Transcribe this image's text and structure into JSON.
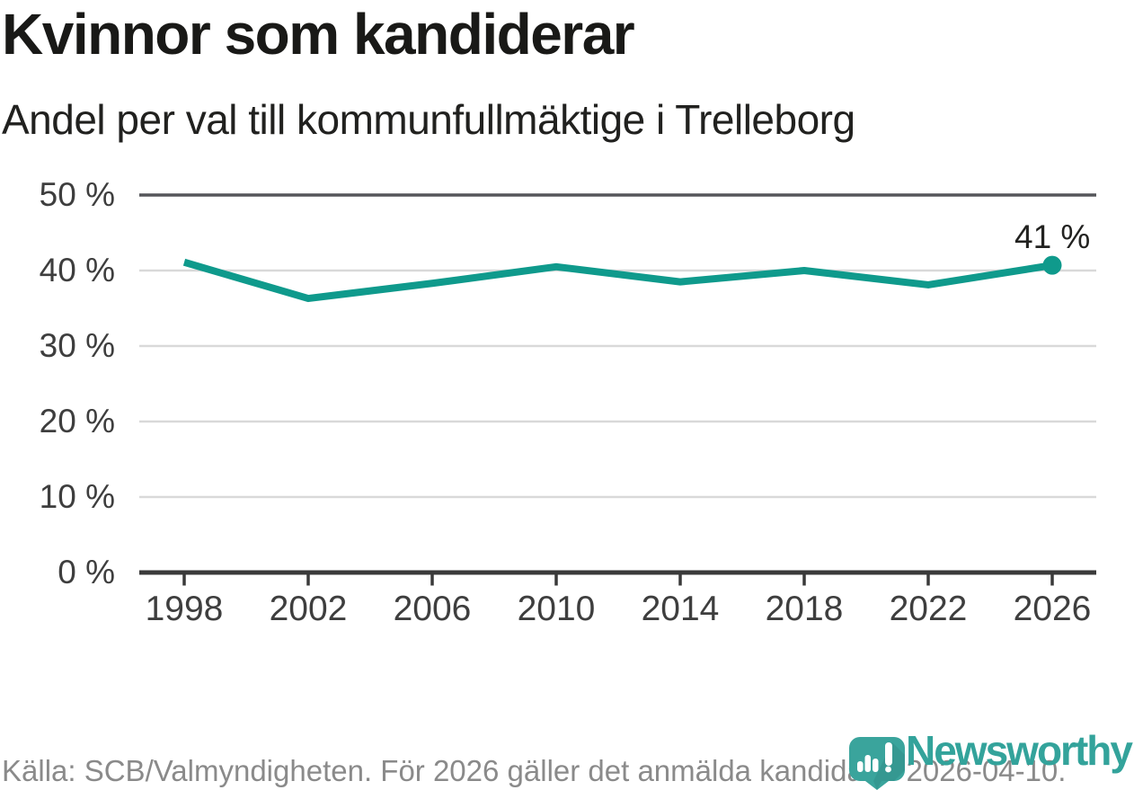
{
  "chart_data": {
    "type": "line",
    "title": "Kvinnor som kandiderar",
    "subtitle": "Andel per val till kommunfullmäktige i Trelleborg",
    "categories": [
      "1998",
      "2002",
      "2006",
      "2010",
      "2014",
      "2018",
      "2022",
      "2026"
    ],
    "series": [
      {
        "name": "Kvinnor som kandiderar",
        "values": [
          41.1,
          36.3,
          38.3,
          40.5,
          38.5,
          40.0,
          38.1,
          40.7
        ]
      }
    ],
    "ylim": [
      0,
      50
    ],
    "yticks": [
      0,
      10,
      20,
      30,
      40,
      50
    ],
    "ytick_labels": [
      "0 %",
      "10 %",
      "20 %",
      "30 %",
      "40 %",
      "50 %"
    ],
    "end_point_label": "41 %",
    "line_color": "#0f9a8c",
    "grid": true,
    "legend": "none",
    "colors": {
      "axis_dark": "#3a3a3a",
      "grid_top": "#55565a",
      "grid_light": "#d9d9d9",
      "tick_label": "#3e3e3e"
    }
  },
  "footer": {
    "source": "Källa: SCB/Valmyndigheten. För 2026 gäller det anmälda kandidater 2026-04-10.",
    "logo_text": "Newsworthy",
    "logo_color": "#33a39b"
  }
}
